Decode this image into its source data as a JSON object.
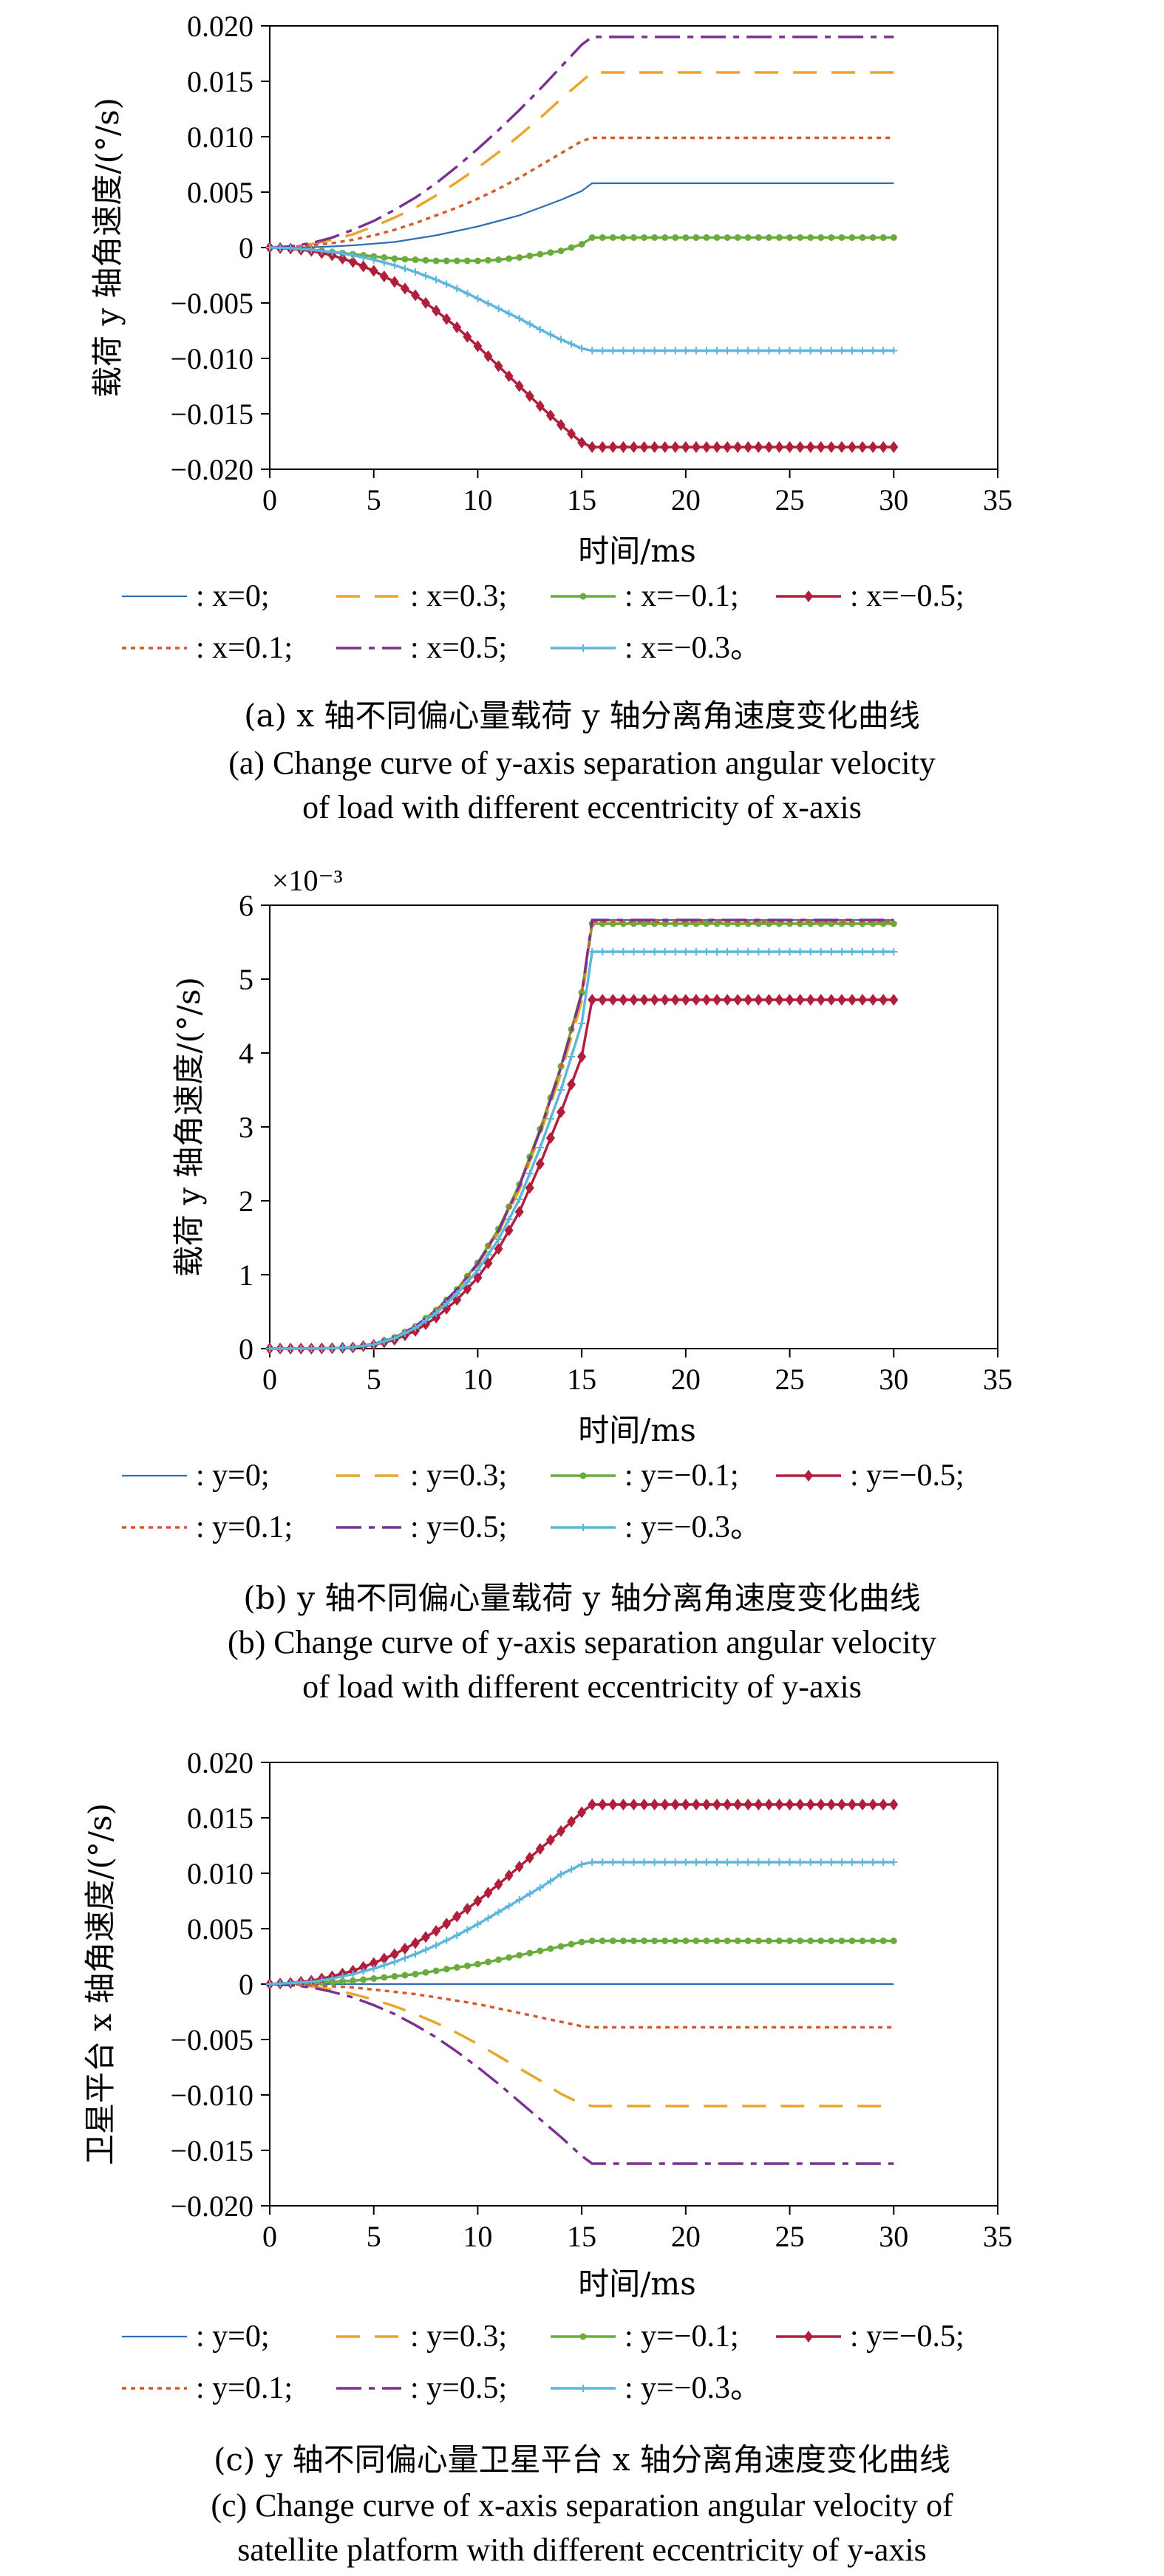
{
  "series_styles": [
    {
      "key": "s0",
      "color": "#2f6db5",
      "dash": "none",
      "marker": "none"
    },
    {
      "key": "s1",
      "color": "#e8a52a",
      "dash": "32 20",
      "marker": "none"
    },
    {
      "key": "s2",
      "color": "#6aab3e",
      "dash": "none",
      "marker": "dot"
    },
    {
      "key": "s3",
      "color": "#b01e3c",
      "dash": "none",
      "marker": "diamond"
    },
    {
      "key": "s4",
      "color": "#d35a2c",
      "dash": "6 6",
      "marker": "none"
    },
    {
      "key": "s5",
      "color": "#7b2f90",
      "dash": "34 10 8 10",
      "marker": "none"
    },
    {
      "key": "s6",
      "color": "#5db6dc",
      "dash": "none",
      "marker": "plus"
    }
  ],
  "chart_data": [
    {
      "type": "line",
      "ylabel": "载荷 y 轴角速度/(°/s)",
      "xlabel": "时间/ms",
      "xlim": [
        0,
        35
      ],
      "ylim": [
        -0.02,
        0.02
      ],
      "xticks": [
        "0",
        "5",
        "10",
        "15",
        "20",
        "25",
        "30",
        "35"
      ],
      "yticks": [
        "-0.020",
        "-0.015",
        "-0.010",
        "-0.005",
        "0",
        "0.005",
        "0.010",
        "0.015",
        "0.020"
      ],
      "ytick_labels": [
        "−0.020",
        "−0.015",
        "−0.010",
        "−0.005",
        "0",
        "0.005",
        "0.010",
        "0.015",
        "0.020"
      ],
      "multiplier": "",
      "grid": false,
      "x": [
        0,
        1,
        2,
        3,
        4,
        5,
        6,
        7,
        8,
        9,
        10,
        11,
        12,
        13,
        14,
        15,
        15.5,
        16,
        17,
        18,
        19,
        20,
        21,
        22,
        23,
        24,
        25,
        26,
        27,
        28,
        29,
        30
      ],
      "series": [
        {
          "name": ": x=0;",
          "style": "s0",
          "values": [
            0,
            0,
            3e-05,
            0.0001,
            0.0002,
            0.00035,
            0.0005,
            0.0008,
            0.0011,
            0.0015,
            0.0019,
            0.0024,
            0.0029,
            0.0036,
            0.0043,
            0.0051,
            0.0058,
            0.0058,
            0.0058,
            0.0058,
            0.0058,
            0.0058,
            0.0058,
            0.0058,
            0.0058,
            0.0058,
            0.0058,
            0.0058,
            0.0058,
            0.0058,
            0.0058,
            0.0058
          ]
        },
        {
          "name": ": x=0.3;",
          "style": "s1",
          "values": [
            0,
            0.0001,
            0.0003,
            0.0007,
            0.0012,
            0.0019,
            0.0027,
            0.0036,
            0.0047,
            0.0059,
            0.0072,
            0.0086,
            0.0101,
            0.0117,
            0.0134,
            0.015,
            0.0158,
            0.0158,
            0.0158,
            0.0158,
            0.0158,
            0.0158,
            0.0158,
            0.0158,
            0.0158,
            0.0158,
            0.0158,
            0.0158,
            0.0158,
            0.0158,
            0.0158,
            0.0158
          ]
        },
        {
          "name": ": x=−0.1;",
          "style": "s2",
          "values": [
            0,
            -0.0001,
            -0.0002,
            -0.0004,
            -0.0006,
            -0.0008,
            -0.001,
            -0.0011,
            -0.0012,
            -0.0012,
            -0.0012,
            -0.0011,
            -0.0009,
            -0.0006,
            -0.0003,
            0.0003,
            0.0009,
            0.0009,
            0.0009,
            0.0009,
            0.0009,
            0.0009,
            0.0009,
            0.0009,
            0.0009,
            0.0009,
            0.0009,
            0.0009,
            0.0009,
            0.0009,
            0.0009,
            0.0009
          ]
        },
        {
          "name": ": x=−0.5;",
          "style": "s3",
          "values": [
            0,
            -0.0001,
            -0.0003,
            -0.0007,
            -0.0013,
            -0.0021,
            -0.0031,
            -0.0043,
            -0.0057,
            -0.0072,
            -0.0089,
            -0.0107,
            -0.0125,
            -0.0143,
            -0.016,
            -0.0176,
            -0.018,
            -0.018,
            -0.018,
            -0.018,
            -0.018,
            -0.018,
            -0.018,
            -0.018,
            -0.018,
            -0.018,
            -0.018,
            -0.018,
            -0.018,
            -0.018,
            -0.018,
            -0.018
          ]
        },
        {
          "name": ": x=0.1;",
          "style": "s4",
          "values": [
            0,
            5e-05,
            0.0002,
            0.0004,
            0.0007,
            0.0011,
            0.0016,
            0.0022,
            0.0029,
            0.0036,
            0.0044,
            0.0053,
            0.0063,
            0.0074,
            0.0085,
            0.0096,
            0.0099,
            0.0099,
            0.0099,
            0.0099,
            0.0099,
            0.0099,
            0.0099,
            0.0099,
            0.0099,
            0.0099,
            0.0099,
            0.0099,
            0.0099,
            0.0099,
            0.0099,
            0.0099
          ]
        },
        {
          "name": ": x=0.5;",
          "style": "s5",
          "values": [
            0,
            0.0001,
            0.0004,
            0.0009,
            0.0016,
            0.0024,
            0.0034,
            0.0045,
            0.0058,
            0.0073,
            0.0089,
            0.0106,
            0.0124,
            0.0143,
            0.0163,
            0.0183,
            0.019,
            0.019,
            0.019,
            0.019,
            0.019,
            0.019,
            0.019,
            0.019,
            0.019,
            0.019,
            0.019,
            0.019,
            0.019,
            0.019,
            0.019,
            0.019
          ]
        },
        {
          "name": ": x=−0.3。",
          "style": "s6",
          "values": [
            0,
            -5e-05,
            -0.0002,
            -0.0004,
            -0.0007,
            -0.0011,
            -0.0016,
            -0.0022,
            -0.0029,
            -0.0037,
            -0.0046,
            -0.0055,
            -0.0064,
            -0.0074,
            -0.0083,
            -0.0091,
            -0.0093,
            -0.0093,
            -0.0093,
            -0.0093,
            -0.0093,
            -0.0093,
            -0.0093,
            -0.0093,
            -0.0093,
            -0.0093,
            -0.0093,
            -0.0093,
            -0.0093,
            -0.0093,
            -0.0093,
            -0.0093
          ]
        }
      ],
      "caption_cn": "(a) x 轴不同偏心量载荷 y 轴分离角速度变化曲线",
      "caption_en_1": "(a) Change curve of y-axis separation angular velocity",
      "caption_en_2": "of load with different eccentricity of x-axis"
    },
    {
      "type": "line",
      "ylabel": "载荷 y 轴角速度/(°/s)",
      "xlabel": "时间/ms",
      "xlim": [
        0,
        35
      ],
      "ylim": [
        0,
        6
      ],
      "xticks": [
        "0",
        "5",
        "10",
        "15",
        "20",
        "25",
        "30",
        "35"
      ],
      "yticks": [
        "0",
        "1",
        "2",
        "3",
        "4",
        "5",
        "6"
      ],
      "ytick_labels": [
        "0",
        "1",
        "2",
        "3",
        "4",
        "5",
        "6"
      ],
      "multiplier": "×10⁻³",
      "grid": false,
      "x": [
        0,
        1,
        2,
        3,
        4,
        5,
        6,
        7,
        8,
        9,
        10,
        11,
        12,
        13,
        14,
        15,
        15.5,
        16,
        17,
        18,
        19,
        20,
        21,
        22,
        23,
        24,
        25,
        26,
        27,
        28,
        29,
        30
      ],
      "series": [
        {
          "name": ": y=0;",
          "style": "s0",
          "values": [
            0,
            0,
            0,
            0.005,
            0.02,
            0.06,
            0.15,
            0.3,
            0.52,
            0.8,
            1.15,
            1.6,
            2.2,
            2.95,
            3.8,
            4.8,
            5.8,
            5.8,
            5.8,
            5.8,
            5.8,
            5.8,
            5.8,
            5.8,
            5.8,
            5.8,
            5.8,
            5.8,
            5.8,
            5.8,
            5.8,
            5.8
          ]
        },
        {
          "name": ": y=0.3;",
          "style": "s1",
          "values": [
            0,
            0,
            0,
            0.005,
            0.02,
            0.06,
            0.15,
            0.3,
            0.52,
            0.79,
            1.13,
            1.57,
            2.15,
            2.9,
            3.72,
            4.7,
            5.75,
            5.75,
            5.75,
            5.75,
            5.75,
            5.75,
            5.75,
            5.75,
            5.75,
            5.75,
            5.75,
            5.75,
            5.75,
            5.75,
            5.75,
            5.75
          ]
        },
        {
          "name": ": y=−0.1;",
          "style": "s2",
          "values": [
            0,
            0,
            0,
            0.005,
            0.02,
            0.06,
            0.15,
            0.3,
            0.52,
            0.8,
            1.16,
            1.62,
            2.22,
            2.97,
            3.82,
            4.82,
            5.75,
            5.75,
            5.75,
            5.75,
            5.75,
            5.75,
            5.75,
            5.75,
            5.75,
            5.75,
            5.75,
            5.75,
            5.75,
            5.75,
            5.75,
            5.75
          ]
        },
        {
          "name": ": y=−0.5;",
          "style": "s3",
          "values": [
            0,
            0,
            0,
            0.005,
            0.015,
            0.05,
            0.12,
            0.24,
            0.42,
            0.66,
            0.96,
            1.35,
            1.85,
            2.5,
            3.2,
            3.95,
            4.72,
            4.72,
            4.72,
            4.72,
            4.72,
            4.72,
            4.72,
            4.72,
            4.72,
            4.72,
            4.72,
            4.72,
            4.72,
            4.72,
            4.72,
            4.72
          ]
        },
        {
          "name": ": y=0.1;",
          "style": "s4",
          "values": [
            0,
            0,
            0,
            0.005,
            0.02,
            0.06,
            0.15,
            0.3,
            0.52,
            0.8,
            1.15,
            1.6,
            2.2,
            2.95,
            3.8,
            4.8,
            5.78,
            5.78,
            5.78,
            5.78,
            5.78,
            5.78,
            5.78,
            5.78,
            5.78,
            5.78,
            5.78,
            5.78,
            5.78,
            5.78,
            5.78,
            5.78
          ]
        },
        {
          "name": ": y=0.5;",
          "style": "s5",
          "values": [
            0,
            0,
            0,
            0.005,
            0.02,
            0.06,
            0.15,
            0.3,
            0.52,
            0.8,
            1.15,
            1.6,
            2.2,
            2.95,
            3.8,
            4.8,
            5.8,
            5.8,
            5.8,
            5.8,
            5.8,
            5.8,
            5.8,
            5.8,
            5.8,
            5.8,
            5.8,
            5.8,
            5.8,
            5.8,
            5.8,
            5.8
          ]
        },
        {
          "name": ": y=−0.3。",
          "style": "s6",
          "values": [
            0,
            0,
            0,
            0.005,
            0.018,
            0.055,
            0.14,
            0.28,
            0.48,
            0.74,
            1.06,
            1.48,
            2.02,
            2.72,
            3.5,
            4.4,
            5.37,
            5.37,
            5.37,
            5.37,
            5.37,
            5.37,
            5.37,
            5.37,
            5.37,
            5.37,
            5.37,
            5.37,
            5.37,
            5.37,
            5.37,
            5.37
          ]
        }
      ],
      "caption_cn": "(b) y 轴不同偏心量载荷 y 轴分离角速度变化曲线",
      "caption_en_1": "(b) Change curve of y-axis separation angular velocity",
      "caption_en_2": "of load with different eccentricity of y-axis"
    },
    {
      "type": "line",
      "ylabel": "卫星平台 x 轴角速度/(°/s)",
      "xlabel": "时间/ms",
      "xlim": [
        0,
        35
      ],
      "ylim": [
        -0.02,
        0.02
      ],
      "xticks": [
        "0",
        "5",
        "10",
        "15",
        "20",
        "25",
        "30",
        "35"
      ],
      "yticks": [
        "-0.020",
        "-0.015",
        "-0.010",
        "-0.005",
        "0",
        "0.005",
        "0.010",
        "0.015",
        "0.020"
      ],
      "ytick_labels": [
        "−0.020",
        "−0.015",
        "−0.010",
        "−0.005",
        "0",
        "0.005",
        "0.010",
        "0.015",
        "0.020"
      ],
      "multiplier": "",
      "grid": false,
      "x": [
        0,
        1,
        2,
        3,
        4,
        5,
        6,
        7,
        8,
        9,
        10,
        11,
        12,
        13,
        14,
        15,
        15.5,
        16,
        17,
        18,
        19,
        20,
        21,
        22,
        23,
        24,
        25,
        26,
        27,
        28,
        29,
        30
      ],
      "series": [
        {
          "name": ": y=0;",
          "style": "s0",
          "values": [
            0,
            0,
            0,
            0,
            0,
            0,
            0,
            0,
            0,
            0,
            0,
            0,
            0,
            0,
            0,
            0,
            0,
            0,
            0,
            0,
            0,
            0,
            0,
            0,
            0,
            0,
            0,
            0,
            0,
            0,
            0,
            0
          ]
        },
        {
          "name": ": y=0.3;",
          "style": "s1",
          "values": [
            0,
            -0.0001,
            -0.0002,
            -0.0005,
            -0.0009,
            -0.0014,
            -0.002,
            -0.0027,
            -0.0035,
            -0.0044,
            -0.0054,
            -0.0065,
            -0.0076,
            -0.0087,
            -0.0099,
            -0.0108,
            -0.011,
            -0.011,
            -0.011,
            -0.011,
            -0.011,
            -0.011,
            -0.011,
            -0.011,
            -0.011,
            -0.011,
            -0.011,
            -0.011,
            -0.011,
            -0.011,
            -0.011,
            -0.011
          ]
        },
        {
          "name": ": y=−0.1;",
          "style": "s2",
          "values": [
            0,
            3e-05,
            0.0001,
            0.0002,
            0.0003,
            0.0005,
            0.0007,
            0.0009,
            0.0012,
            0.0015,
            0.0018,
            0.0022,
            0.0026,
            0.003,
            0.0034,
            0.0038,
            0.0039,
            0.0039,
            0.0039,
            0.0039,
            0.0039,
            0.0039,
            0.0039,
            0.0039,
            0.0039,
            0.0039,
            0.0039,
            0.0039,
            0.0039,
            0.0039,
            0.0039,
            0.0039
          ]
        },
        {
          "name": ": y=−0.5;",
          "style": "s3",
          "values": [
            0,
            0.0001,
            0.0003,
            0.0007,
            0.0012,
            0.0019,
            0.0027,
            0.0037,
            0.0048,
            0.0061,
            0.0075,
            0.009,
            0.0106,
            0.0122,
            0.0138,
            0.0155,
            0.0162,
            0.0162,
            0.0162,
            0.0162,
            0.0162,
            0.0162,
            0.0162,
            0.0162,
            0.0162,
            0.0162,
            0.0162,
            0.0162,
            0.0162,
            0.0162,
            0.0162,
            0.0162
          ]
        },
        {
          "name": ": y=0.1;",
          "style": "s4",
          "values": [
            0,
            -3e-05,
            -0.0001,
            -0.0002,
            -0.0003,
            -0.0005,
            -0.0007,
            -0.0009,
            -0.0012,
            -0.0015,
            -0.0018,
            -0.0022,
            -0.0026,
            -0.003,
            -0.0034,
            -0.0038,
            -0.0039,
            -0.0039,
            -0.0039,
            -0.0039,
            -0.0039,
            -0.0039,
            -0.0039,
            -0.0039,
            -0.0039,
            -0.0039,
            -0.0039,
            -0.0039,
            -0.0039,
            -0.0039,
            -0.0039,
            -0.0039
          ]
        },
        {
          "name": ": y=0.5;",
          "style": "s5",
          "values": [
            0,
            -0.0001,
            -0.0003,
            -0.0007,
            -0.0012,
            -0.0019,
            -0.0027,
            -0.0037,
            -0.0048,
            -0.0061,
            -0.0075,
            -0.009,
            -0.0106,
            -0.0122,
            -0.0138,
            -0.0155,
            -0.0162,
            -0.0162,
            -0.0162,
            -0.0162,
            -0.0162,
            -0.0162,
            -0.0162,
            -0.0162,
            -0.0162,
            -0.0162,
            -0.0162,
            -0.0162,
            -0.0162,
            -0.0162,
            -0.0162,
            -0.0162
          ]
        },
        {
          "name": ": y=−0.3。",
          "style": "s6",
          "values": [
            0,
            0.0001,
            0.0002,
            0.0005,
            0.0009,
            0.0014,
            0.002,
            0.0027,
            0.0035,
            0.0044,
            0.0054,
            0.0065,
            0.0076,
            0.0087,
            0.0099,
            0.0108,
            0.011,
            0.011,
            0.011,
            0.011,
            0.011,
            0.011,
            0.011,
            0.011,
            0.011,
            0.011,
            0.011,
            0.011,
            0.011,
            0.011,
            0.011,
            0.011
          ]
        }
      ],
      "caption_cn": "(c) y 轴不同偏心量卫星平台 x 轴分离角速度变化曲线",
      "caption_en_1": "(c) Change curve of x-axis separation angular velocity of",
      "caption_en_2": "satellite platform with different eccentricity of y-axis"
    }
  ]
}
